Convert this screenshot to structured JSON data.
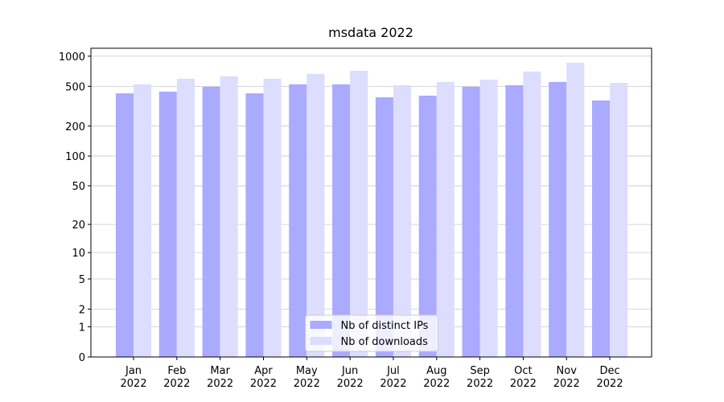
{
  "chart_data": {
    "type": "bar",
    "title": "msdata 2022",
    "categories": [
      "Jan\n2022",
      "Feb\n2022",
      "Mar\n2022",
      "Apr\n2022",
      "May\n2022",
      "Jun\n2022",
      "Jul\n2022",
      "Aug\n2022",
      "Sep\n2022",
      "Oct\n2022",
      "Nov\n2022",
      "Dec\n2022"
    ],
    "series": [
      {
        "name": "Nb of distinct IPs",
        "color": "#aaaaff",
        "values": [
          425,
          442,
          494,
          425,
          523,
          523,
          388,
          403,
          494,
          513,
          553,
          361
        ]
      },
      {
        "name": "Nb of downloads",
        "color": "#ddddff",
        "values": [
          523,
          595,
          629,
          595,
          665,
          715,
          513,
          553,
          584,
          702,
          860,
          542
        ]
      }
    ],
    "yscale": "log1p",
    "ylim": [
      0,
      1200
    ],
    "yticks": [
      0,
      1,
      2,
      5,
      10,
      20,
      50,
      100,
      200,
      500,
      1000
    ],
    "grid": true,
    "legend": "lower center"
  }
}
